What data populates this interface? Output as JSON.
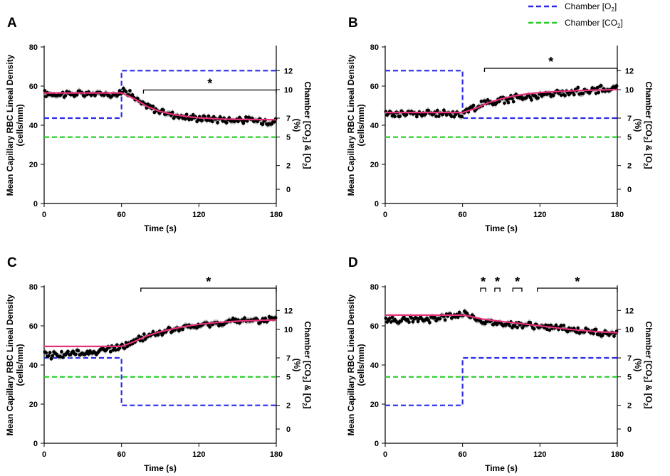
{
  "legend": {
    "items": [
      {
        "label": "Chamber [O",
        "sub": "2",
        "suffix": "]",
        "color": "#2a2ae6"
      },
      {
        "label": "Chamber [CO",
        "sub": "2",
        "suffix": "]",
        "color": "#22cc22"
      }
    ]
  },
  "colors": {
    "o2": "#2a2ae6",
    "co2": "#22cc22",
    "fit": "#e6307a",
    "data": "#000000",
    "error": "#b0b0b0"
  },
  "common": {
    "xlabel": "Time (s)",
    "ylabel_line1": "Mean Capillary RBC Lineal Density",
    "ylabel_line2": "(cells/mm)",
    "y2label_a": "Chamber [CO",
    "y2label_sub1": "2",
    "y2label_b": "] & [O",
    "y2label_sub2": "2",
    "y2label_c": "]",
    "y2label_unit": "(%)",
    "star": "*"
  },
  "chart_data": [
    {
      "panel": "A",
      "type": "line",
      "xlim": [
        0,
        180
      ],
      "ylim": [
        0,
        80
      ],
      "x_ticks": [
        "0",
        "60",
        "120",
        "180"
      ],
      "y_ticks": [
        "0",
        "20",
        "40",
        "60",
        "80"
      ],
      "y2_ticks": [
        "0",
        "2",
        "5",
        "7",
        "10",
        "12"
      ],
      "y2_tick_positions": [
        -0.5,
        2,
        5,
        7,
        10,
        12
      ],
      "y2_range": [
        -2,
        14.5
      ],
      "series": [
        {
          "name": "RBC lineal density",
          "type": "scatter",
          "x_range": [
            0,
            180
          ],
          "n_points": 180,
          "mean": [
            [
              0,
              56
            ],
            [
              60,
              56
            ],
            [
              62,
              59
            ],
            [
              75,
              51
            ],
            [
              90,
              47
            ],
            [
              110,
              44
            ],
            [
              140,
              43
            ],
            [
              180,
              42
            ]
          ]
        },
        {
          "name": "Fit",
          "x": [
            0,
            60,
            70,
            80,
            90,
            100,
            110,
            120,
            135,
            150,
            180
          ],
          "y": [
            56.5,
            56.5,
            53.5,
            49.5,
            47,
            45.5,
            44.5,
            43.8,
            43.2,
            43,
            42.8
          ]
        },
        {
          "name": "Chamber [O2]",
          "x": [
            0,
            60,
            60,
            180
          ],
          "y": [
            7,
            7,
            12,
            12
          ]
        },
        {
          "name": "Chamber [CO2]",
          "x": [
            0,
            180
          ],
          "y": [
            5,
            5
          ]
        }
      ],
      "significance": [
        {
          "x": [
            77,
            180
          ],
          "label": "*"
        }
      ]
    },
    {
      "panel": "B",
      "type": "line",
      "xlim": [
        0,
        180
      ],
      "ylim": [
        0,
        80
      ],
      "x_ticks": [
        "0",
        "60",
        "120",
        "180"
      ],
      "y_ticks": [
        "0",
        "20",
        "40",
        "60",
        "80"
      ],
      "y2_ticks": [
        "0",
        "2",
        "5",
        "7",
        "10",
        "12"
      ],
      "y2_tick_positions": [
        -0.5,
        2,
        5,
        7,
        10,
        12
      ],
      "y2_range": [
        -2,
        14.5
      ],
      "series": [
        {
          "name": "RBC lineal density",
          "type": "scatter",
          "x_range": [
            0,
            180
          ],
          "n_points": 180,
          "mean": [
            [
              0,
              46
            ],
            [
              60,
              46
            ],
            [
              75,
              51
            ],
            [
              100,
              54
            ],
            [
              130,
              56
            ],
            [
              160,
              58
            ],
            [
              180,
              59
            ]
          ]
        },
        {
          "name": "Fit",
          "x": [
            0,
            60,
            70,
            80,
            90,
            100,
            110,
            120,
            135,
            150,
            165,
            180
          ],
          "y": [
            46.5,
            46.5,
            48.5,
            51.5,
            53.5,
            55,
            56,
            56.7,
            57.3,
            57.7,
            58,
            58.2
          ]
        },
        {
          "name": "Chamber [O2]",
          "x": [
            0,
            60,
            60,
            180
          ],
          "y": [
            12,
            12,
            7,
            7
          ]
        },
        {
          "name": "Chamber [CO2]",
          "x": [
            0,
            180
          ],
          "y": [
            5,
            5
          ]
        }
      ],
      "significance": [
        {
          "x": [
            77,
            180
          ],
          "label": "*"
        }
      ]
    },
    {
      "panel": "C",
      "type": "line",
      "xlim": [
        0,
        180
      ],
      "ylim": [
        0,
        80
      ],
      "x_ticks": [
        "0",
        "60",
        "120",
        "180"
      ],
      "y_ticks": [
        "0",
        "20",
        "40",
        "60",
        "80"
      ],
      "y2_ticks": [
        "0",
        "2",
        "5",
        "7",
        "10",
        "12"
      ],
      "y2_tick_positions": [
        -0.5,
        2,
        5,
        7,
        10,
        12
      ],
      "y2_range": [
        -2,
        14.5
      ],
      "series": [
        {
          "name": "RBC lineal density",
          "type": "scatter",
          "x_range": [
            0,
            180
          ],
          "n_points": 180,
          "mean": [
            [
              0,
              45
            ],
            [
              30,
              46
            ],
            [
              60,
              49
            ],
            [
              80,
              55
            ],
            [
              100,
              58
            ],
            [
              130,
              61
            ],
            [
              160,
              63
            ],
            [
              180,
              63
            ]
          ]
        },
        {
          "name": "Fit",
          "x": [
            0,
            60,
            70,
            80,
            90,
            100,
            110,
            120,
            135,
            150,
            165,
            180
          ],
          "y": [
            49.5,
            49.5,
            52,
            55,
            57,
            58.5,
            59.8,
            60.8,
            61.8,
            62.4,
            62.8,
            63
          ]
        },
        {
          "name": "Chamber [O2]",
          "x": [
            0,
            60,
            60,
            180
          ],
          "y": [
            7,
            7,
            2,
            2
          ]
        },
        {
          "name": "Chamber [CO2]",
          "x": [
            0,
            180
          ],
          "y": [
            5,
            5
          ]
        }
      ],
      "significance": [
        {
          "x": [
            75,
            180
          ],
          "label": "*"
        }
      ]
    },
    {
      "panel": "D",
      "type": "line",
      "xlim": [
        0,
        180
      ],
      "ylim": [
        0,
        80
      ],
      "x_ticks": [
        "0",
        "60",
        "120",
        "180"
      ],
      "y_ticks": [
        "0",
        "20",
        "40",
        "60",
        "80"
      ],
      "y2_ticks": [
        "0",
        "2",
        "5",
        "7",
        "10",
        "12"
      ],
      "y2_tick_positions": [
        -0.5,
        2,
        5,
        7,
        10,
        12
      ],
      "y2_range": [
        -2,
        14.5
      ],
      "series": [
        {
          "name": "RBC lineal density",
          "type": "scatter",
          "x_range": [
            0,
            180
          ],
          "n_points": 180,
          "mean": [
            [
              0,
              63
            ],
            [
              30,
              63
            ],
            [
              60,
              66
            ],
            [
              65,
              66
            ],
            [
              75,
              62
            ],
            [
              100,
              61
            ],
            [
              130,
              59
            ],
            [
              160,
              57
            ],
            [
              180,
              56
            ]
          ]
        },
        {
          "name": "Fit",
          "x": [
            0,
            60,
            65,
            75,
            90,
            105,
            120,
            135,
            150,
            165,
            180
          ],
          "y": [
            65.5,
            65.5,
            65,
            63.5,
            62.3,
            61.2,
            60,
            58.8,
            57.8,
            57,
            56.5
          ]
        },
        {
          "name": "Chamber [O2]",
          "x": [
            0,
            60,
            60,
            180
          ],
          "y": [
            2,
            2,
            7,
            7
          ]
        },
        {
          "name": "Chamber [CO2]",
          "x": [
            0,
            180
          ],
          "y": [
            5,
            5
          ]
        }
      ],
      "significance": [
        {
          "x": [
            74,
            78
          ],
          "label": "*"
        },
        {
          "x": [
            85,
            89
          ],
          "label": "*"
        },
        {
          "x": [
            99,
            106
          ],
          "label": "*"
        },
        {
          "x": [
            118,
            180
          ],
          "label": "*"
        }
      ]
    }
  ]
}
